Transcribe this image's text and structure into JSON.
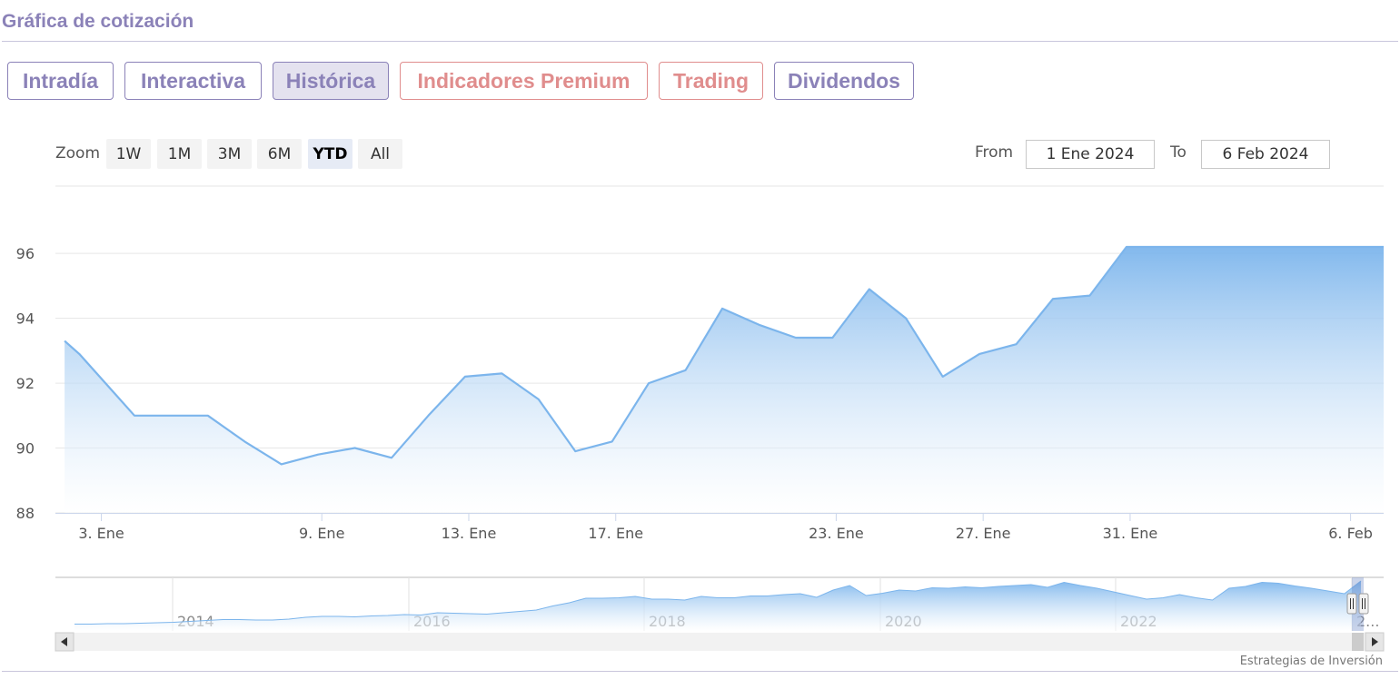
{
  "header": {
    "title": "Gráfica de cotización"
  },
  "tabs": [
    {
      "label": "Intradía",
      "active": false,
      "premium": false
    },
    {
      "label": "Interactiva",
      "active": false,
      "premium": false
    },
    {
      "label": "Histórica",
      "active": true,
      "premium": false
    },
    {
      "label": "Indicadores Premium",
      "active": false,
      "premium": true
    },
    {
      "label": "Trading",
      "active": false,
      "premium": true
    },
    {
      "label": "Dividendos",
      "active": false,
      "premium": false
    }
  ],
  "range_selector": {
    "zoom_label": "Zoom",
    "buttons": [
      "1W",
      "1M",
      "3M",
      "6M",
      "YTD",
      "All"
    ],
    "selected": "YTD",
    "from_label": "From",
    "from_value": "1 Ene 2024",
    "to_label": "To",
    "to_value": "6 Feb 2024"
  },
  "colors": {
    "accent": "#8b82b8",
    "premium": "#e08d8d",
    "series_line": "#7cb5ec",
    "area_top": "#7cb5ec",
    "area_bottom": "#ffffff"
  },
  "chart_data": {
    "type": "area",
    "x_unit": "day of January 2024 (Feb 6 = day 37)",
    "x": [
      2,
      2.4,
      3.9,
      4.9,
      5.9,
      6.9,
      7.9,
      8.9,
      9.9,
      10.9,
      11.9,
      12.9,
      13.9,
      14.9,
      15.9,
      16.9,
      17.9,
      18.9,
      19.9,
      20.9,
      21.9,
      22.9,
      23.9,
      24.9,
      25.9,
      26.9,
      27.9,
      28.9,
      29.9,
      30.9,
      31.9,
      32.9,
      33.9,
      34.9,
      35.9,
      36.9,
      37.9
    ],
    "values": [
      93.3,
      92.9,
      91.0,
      91.0,
      91.0,
      90.2,
      89.5,
      89.8,
      90.0,
      89.7,
      91.0,
      92.2,
      92.3,
      91.5,
      89.9,
      90.2,
      92.0,
      92.4,
      94.3,
      93.8,
      93.4,
      93.4,
      94.9,
      94.0,
      92.2,
      92.9,
      93.2,
      94.6,
      94.7,
      96.2,
      96.2,
      96.2,
      96.2,
      96.2,
      96.2,
      96.2,
      96.2
    ],
    "ylim": [
      88,
      96.2
    ],
    "yticks": [
      88,
      90,
      92,
      94,
      96
    ],
    "xticks": [
      {
        "x": 3,
        "label": "3. Ene"
      },
      {
        "x": 9,
        "label": "9. Ene"
      },
      {
        "x": 13,
        "label": "13. Ene"
      },
      {
        "x": 17,
        "label": "17. Ene"
      },
      {
        "x": 23,
        "label": "23. Ene"
      },
      {
        "x": 27,
        "label": "27. Ene"
      },
      {
        "x": 31,
        "label": "31. Ene"
      },
      {
        "x": 37,
        "label": "6. Feb"
      }
    ],
    "grid": true,
    "navigator": {
      "years": [
        "2014",
        "2016",
        "2018",
        "2020",
        "2022",
        "2..."
      ],
      "series": [
        0.05,
        0.05,
        0.06,
        0.06,
        0.07,
        0.08,
        0.09,
        0.11,
        0.13,
        0.15,
        0.15,
        0.14,
        0.14,
        0.16,
        0.2,
        0.22,
        0.22,
        0.21,
        0.23,
        0.24,
        0.26,
        0.25,
        0.3,
        0.29,
        0.28,
        0.27,
        0.3,
        0.33,
        0.36,
        0.45,
        0.52,
        0.62,
        0.62,
        0.63,
        0.66,
        0.6,
        0.6,
        0.58,
        0.66,
        0.63,
        0.63,
        0.67,
        0.67,
        0.7,
        0.72,
        0.64,
        0.8,
        0.9,
        0.68,
        0.73,
        0.8,
        0.78,
        0.85,
        0.84,
        0.87,
        0.85,
        0.88,
        0.9,
        0.92,
        0.86,
        0.97,
        0.9,
        0.84,
        0.76,
        0.68,
        0.6,
        0.63,
        0.7,
        0.63,
        0.58,
        0.84,
        0.88,
        0.97,
        0.95,
        0.89,
        0.84,
        0.78,
        0.72,
        1.0
      ]
    }
  },
  "credits": "Estrategias de Inversión"
}
